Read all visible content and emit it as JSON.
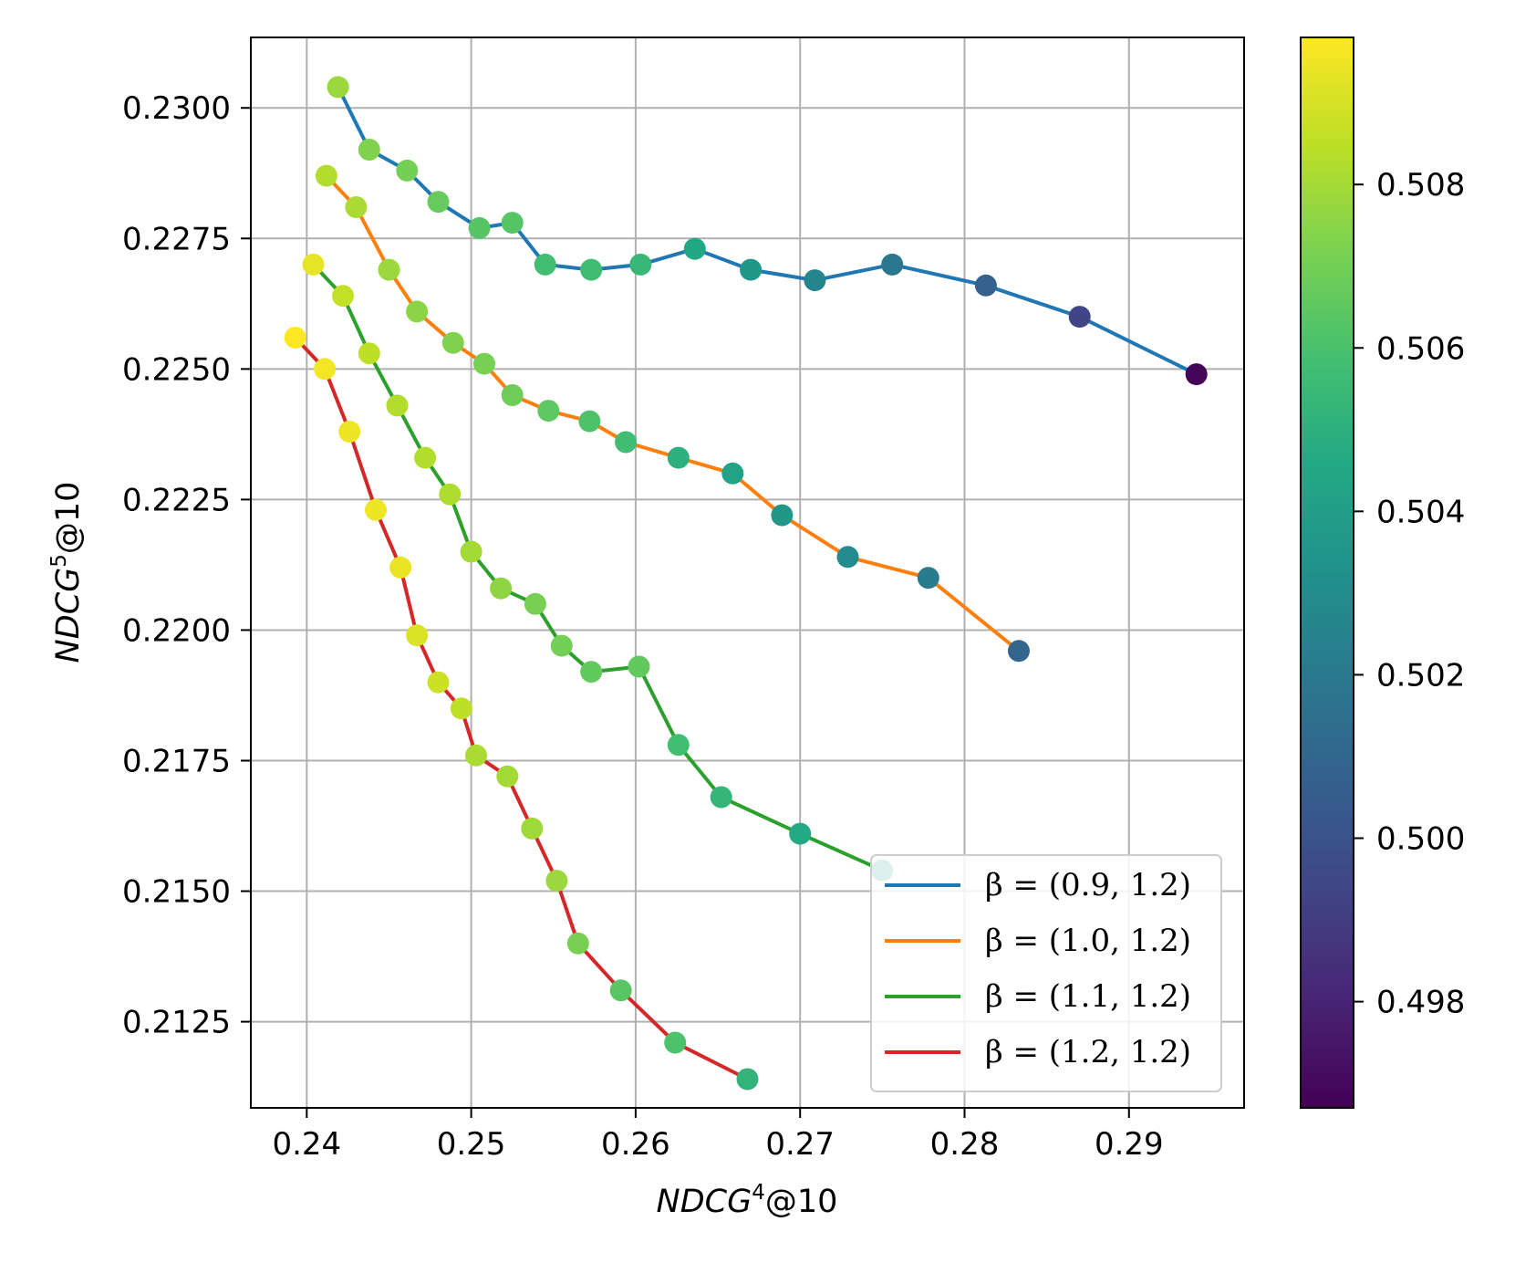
{
  "chart_data": {
    "type": "scatter",
    "xlabel": "NDCG⁴@10",
    "ylabel": "NDCG⁵@10",
    "xlim": [
      0.2366,
      0.297
    ],
    "ylim": [
      0.21085,
      0.23135
    ],
    "x_ticks": [
      "0.24",
      "0.25",
      "0.26",
      "0.27",
      "0.28",
      "0.29"
    ],
    "y_ticks": [
      "0.2125",
      "0.2150",
      "0.2175",
      "0.2200",
      "0.2225",
      "0.2250",
      "0.2275",
      "0.2300"
    ],
    "grid": true,
    "legend_position": "lower-right",
    "colorbar": {
      "colormap": "viridis",
      "range": [
        0.4967,
        0.5098
      ],
      "ticks": [
        "0.498",
        "0.500",
        "0.502",
        "0.504",
        "0.506",
        "0.508"
      ]
    },
    "series": [
      {
        "name": "β = (0.9, 1.2)",
        "color": "#1f77b4",
        "points": [
          [
            0.2419,
            0.2304,
            0.5078
          ],
          [
            0.2438,
            0.2292,
            0.5073
          ],
          [
            0.2461,
            0.2288,
            0.507
          ],
          [
            0.248,
            0.2282,
            0.5067
          ],
          [
            0.2505,
            0.2277,
            0.5063
          ],
          [
            0.2525,
            0.2278,
            0.5063
          ],
          [
            0.2545,
            0.227,
            0.5058
          ],
          [
            0.2573,
            0.2269,
            0.5057
          ],
          [
            0.2603,
            0.227,
            0.5054
          ],
          [
            0.2636,
            0.2273,
            0.5045
          ],
          [
            0.267,
            0.2269,
            0.5036
          ],
          [
            0.2709,
            0.2267,
            0.5026
          ],
          [
            0.2756,
            0.227,
            0.5019
          ],
          [
            0.2813,
            0.2266,
            0.5008
          ],
          [
            0.287,
            0.226,
            0.4993
          ],
          [
            0.2941,
            0.2249,
            0.4968
          ]
        ]
      },
      {
        "name": "β = (1.0, 1.2)",
        "color": "#ff7f0e",
        "points": [
          [
            0.2412,
            0.2287,
            0.5083
          ],
          [
            0.243,
            0.2281,
            0.5081
          ],
          [
            0.245,
            0.2269,
            0.5078
          ],
          [
            0.2467,
            0.2261,
            0.5075
          ],
          [
            0.2489,
            0.2255,
            0.5073
          ],
          [
            0.2508,
            0.2251,
            0.5071
          ],
          [
            0.2525,
            0.2245,
            0.5069
          ],
          [
            0.2547,
            0.2242,
            0.5065
          ],
          [
            0.2572,
            0.224,
            0.5061
          ],
          [
            0.2594,
            0.2236,
            0.5057
          ],
          [
            0.2626,
            0.2233,
            0.505
          ],
          [
            0.2659,
            0.223,
            0.5043
          ],
          [
            0.2689,
            0.2222,
            0.5036
          ],
          [
            0.2729,
            0.2214,
            0.5029
          ],
          [
            0.2778,
            0.221,
            0.5021
          ],
          [
            0.2833,
            0.2196,
            0.501
          ]
        ]
      },
      {
        "name": "β = (1.1, 1.2)",
        "color": "#2ca02c",
        "points": [
          [
            0.2404,
            0.227,
            0.5093
          ],
          [
            0.2422,
            0.2264,
            0.5086
          ],
          [
            0.2438,
            0.2253,
            0.5085
          ],
          [
            0.2455,
            0.2243,
            0.5083
          ],
          [
            0.2472,
            0.2233,
            0.5083
          ],
          [
            0.2487,
            0.2226,
            0.5082
          ],
          [
            0.25,
            0.2215,
            0.508
          ],
          [
            0.2518,
            0.2208,
            0.5076
          ],
          [
            0.2539,
            0.2205,
            0.5071
          ],
          [
            0.2555,
            0.2197,
            0.507
          ],
          [
            0.2573,
            0.2192,
            0.5066
          ],
          [
            0.2602,
            0.2193,
            0.5066
          ],
          [
            0.2626,
            0.2178,
            0.5058
          ],
          [
            0.2652,
            0.2168,
            0.5053
          ],
          [
            0.27,
            0.2161,
            0.5046
          ],
          [
            0.275,
            0.2154,
            0.5036
          ]
        ]
      },
      {
        "name": "β = (1.2, 1.2)",
        "color": "#d62728",
        "points": [
          [
            0.2393,
            0.2256,
            0.5098
          ],
          [
            0.2411,
            0.225,
            0.5096
          ],
          [
            0.2426,
            0.2238,
            0.5095
          ],
          [
            0.2442,
            0.2223,
            0.5095
          ],
          [
            0.2457,
            0.2212,
            0.5094
          ],
          [
            0.2467,
            0.2199,
            0.5091
          ],
          [
            0.248,
            0.219,
            0.5088
          ],
          [
            0.2494,
            0.2185,
            0.5085
          ],
          [
            0.2503,
            0.2176,
            0.5081
          ],
          [
            0.2522,
            0.2172,
            0.508
          ],
          [
            0.2537,
            0.2162,
            0.5079
          ],
          [
            0.2552,
            0.2152,
            0.5078
          ],
          [
            0.2565,
            0.214,
            0.5071
          ],
          [
            0.2591,
            0.2131,
            0.5064
          ],
          [
            0.2624,
            0.2121,
            0.5061
          ],
          [
            0.2668,
            0.2114,
            0.5052
          ]
        ]
      }
    ]
  }
}
